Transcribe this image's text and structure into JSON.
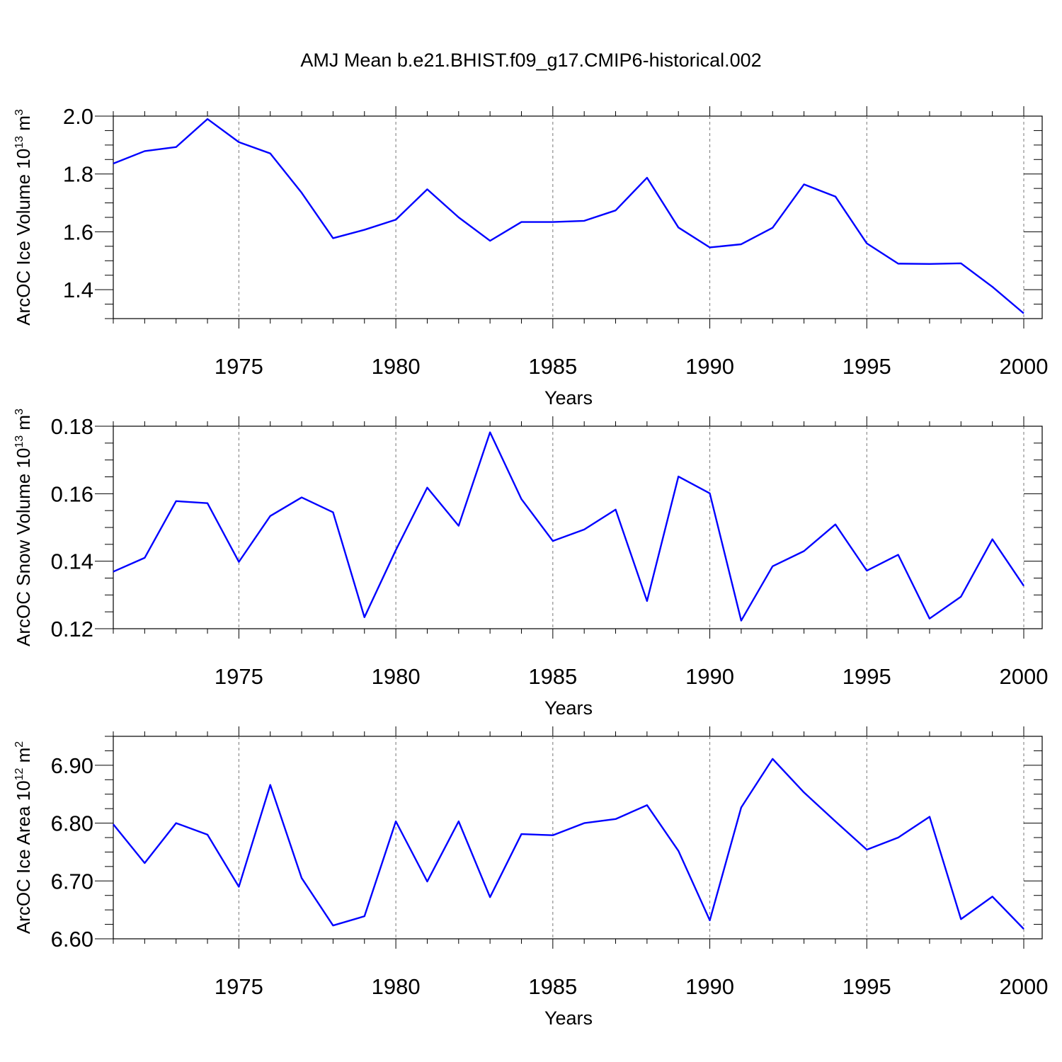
{
  "title": "AMJ Mean b.e21.BHIST.f09_g17.CMIP6-historical.002",
  "chart_data": [
    {
      "type": "line",
      "title": "",
      "ylabel": "ArcOC Ice Volume 10",
      "ylabel_exp": "13",
      "ylabel_unit": " m",
      "ylabel_unit_exp": "3",
      "xlabel": "Years",
      "xlim": [
        1971,
        2000
      ],
      "ylim": [
        1.3,
        2.0
      ],
      "xticks": [
        "1975",
        "1980",
        "1985",
        "1990",
        "1995",
        "2000"
      ],
      "yticks": [
        "1.4",
        "1.6",
        "1.8",
        "2.0"
      ],
      "grid": "dashed-vertical",
      "line_color": "#0000ff",
      "x": [
        1971,
        1972,
        1973,
        1974,
        1975,
        1976,
        1977,
        1978,
        1979,
        1980,
        1981,
        1982,
        1983,
        1984,
        1985,
        1986,
        1987,
        1988,
        1989,
        1990,
        1991,
        1992,
        1993,
        1994,
        1995,
        1996,
        1997,
        1998,
        1999,
        2000
      ],
      "series": [
        {
          "values": [
            1.836,
            1.879,
            1.893,
            1.99,
            1.91,
            1.871,
            1.735,
            1.578,
            1.607,
            1.642,
            1.747,
            1.65,
            1.569,
            1.634,
            1.634,
            1.638,
            1.674,
            1.787,
            1.615,
            1.546,
            1.557,
            1.614,
            1.764,
            1.722,
            1.56,
            1.49,
            1.489,
            1.491,
            1.41,
            1.318
          ]
        }
      ]
    },
    {
      "type": "line",
      "title": "",
      "ylabel": "ArcOC Snow Volume 10",
      "ylabel_exp": "13",
      "ylabel_unit": " m",
      "ylabel_unit_exp": "3",
      "xlabel": "Years",
      "xlim": [
        1971,
        2000
      ],
      "ylim": [
        0.12,
        0.18
      ],
      "xticks": [
        "1975",
        "1980",
        "1985",
        "1990",
        "1995",
        "2000"
      ],
      "yticks": [
        "0.12",
        "0.14",
        "0.16",
        "0.18"
      ],
      "grid": "dashed-vertical",
      "line_color": "#0000ff",
      "x": [
        1971,
        1972,
        1973,
        1974,
        1975,
        1976,
        1977,
        1978,
        1979,
        1980,
        1981,
        1982,
        1983,
        1984,
        1985,
        1986,
        1987,
        1988,
        1989,
        1990,
        1991,
        1992,
        1993,
        1994,
        1995,
        1996,
        1997,
        1998,
        1999,
        2000
      ],
      "series": [
        {
          "values": [
            0.1369,
            0.141,
            0.1578,
            0.1572,
            0.1398,
            0.1534,
            0.1589,
            0.1545,
            0.1234,
            0.1433,
            0.1618,
            0.1505,
            0.1782,
            0.1584,
            0.146,
            0.1494,
            0.1553,
            0.1282,
            0.1651,
            0.1601,
            0.1224,
            0.1385,
            0.143,
            0.1509,
            0.1372,
            0.1419,
            0.123,
            0.1295,
            0.1465,
            0.1327
          ]
        }
      ]
    },
    {
      "type": "line",
      "title": "",
      "ylabel": "ArcOC Ice Area 10",
      "ylabel_exp": "12",
      "ylabel_unit": " m",
      "ylabel_unit_exp": "2",
      "xlabel": "Years",
      "xlim": [
        1971,
        2000
      ],
      "ylim": [
        6.6,
        6.95
      ],
      "xticks": [
        "1975",
        "1980",
        "1985",
        "1990",
        "1995",
        "2000"
      ],
      "yticks": [
        "6.60",
        "6.70",
        "6.80",
        "6.90"
      ],
      "grid": "dashed-vertical",
      "line_color": "#0000ff",
      "x": [
        1971,
        1972,
        1973,
        1974,
        1975,
        1976,
        1977,
        1978,
        1979,
        1980,
        1981,
        1982,
        1983,
        1984,
        1985,
        1986,
        1987,
        1988,
        1989,
        1990,
        1991,
        1992,
        1993,
        1994,
        1995,
        1996,
        1997,
        1998,
        1999,
        2000
      ],
      "series": [
        {
          "values": [
            6.798,
            6.731,
            6.8,
            6.78,
            6.69,
            6.866,
            6.705,
            6.623,
            6.639,
            6.803,
            6.699,
            6.803,
            6.672,
            6.781,
            6.779,
            6.8,
            6.807,
            6.831,
            6.752,
            6.632,
            6.827,
            6.911,
            6.853,
            6.803,
            6.754,
            6.775,
            6.811,
            6.634,
            6.673,
            6.617
          ]
        }
      ]
    }
  ]
}
